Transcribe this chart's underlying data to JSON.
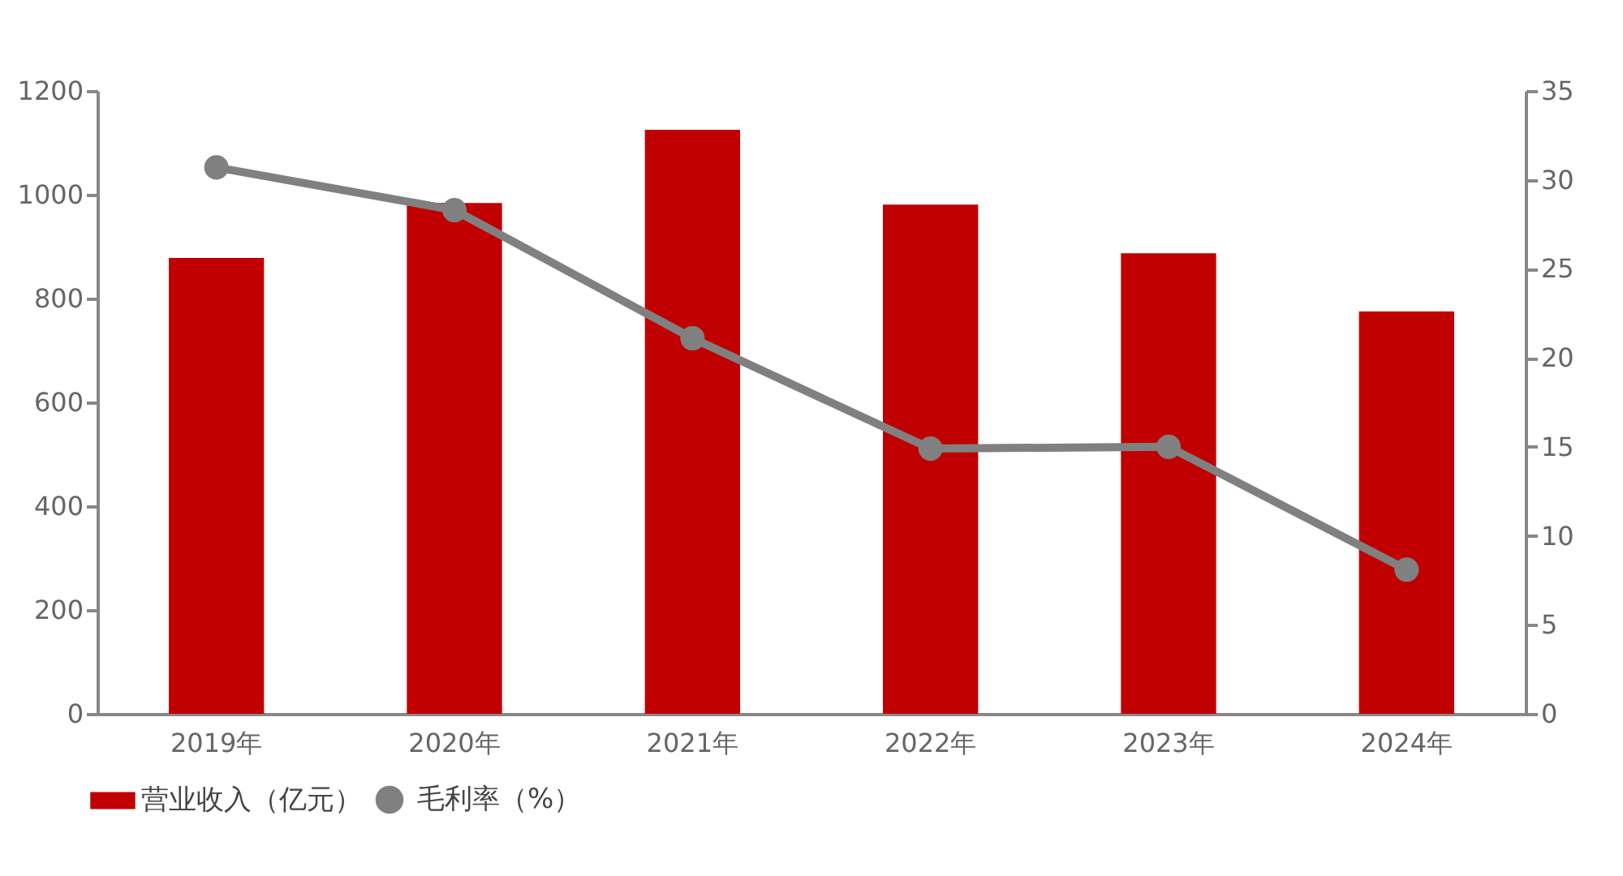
{
  "chart_data": {
    "type": "bar",
    "categories": [
      "2019年",
      "2020年",
      "2021年",
      "2022年",
      "2023年",
      "2024年"
    ],
    "series": [
      {
        "name": "营业收入（亿元）",
        "color": "#c00000",
        "values": [
          878,
          984,
          1125,
          981,
          887,
          775
        ]
      },
      {
        "name": "毛利率（%）",
        "type": "line",
        "axis": "y2",
        "color": "#808080",
        "values": [
          30.7,
          28.3,
          21.1,
          14.9,
          15.0,
          8.1
        ]
      }
    ],
    "ylim": [
      0,
      1200
    ],
    "yticks": [
      0,
      200,
      400,
      600,
      800,
      1000,
      1200
    ],
    "y2lim": [
      0,
      35
    ],
    "y2ticks": [
      0,
      5,
      10,
      15,
      20,
      25,
      30,
      35
    ],
    "marker": "circle",
    "grid": false,
    "legend": "bottom"
  }
}
